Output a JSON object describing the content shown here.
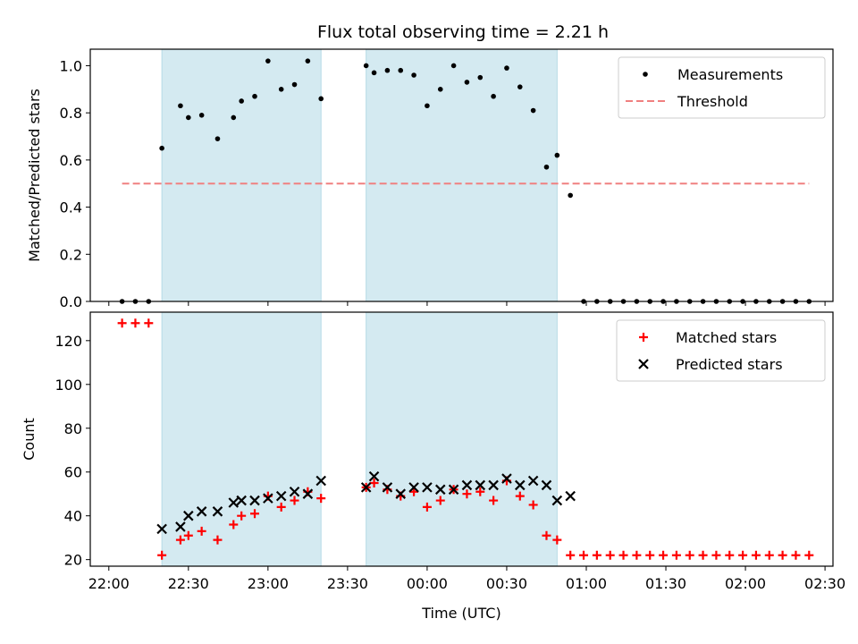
{
  "figure": {
    "title": "Flux total observing time = 2.21 h"
  },
  "chart_data": [
    {
      "type": "scatter",
      "ylabel": "Matched/Predicted stars",
      "xlabel": "",
      "ylim": [
        0,
        1.07
      ],
      "yticks": [
        0.0,
        0.2,
        0.4,
        0.6,
        0.8,
        1.0
      ],
      "ytick_labels": [
        "0.0",
        "0.2",
        "0.4",
        "0.6",
        "0.8",
        "1.0"
      ],
      "x_axis_time_hours": true,
      "xlim": [
        "21:53",
        "02:33"
      ],
      "legend": {
        "position": "top-right",
        "entries": [
          "Measurements",
          "Threshold"
        ]
      },
      "shaded_regions": [
        {
          "start": "22:20",
          "end": "23:20",
          "color": "#d4eaf1"
        },
        {
          "start": "23:37",
          "end": "00:49",
          "color": "#d4eaf1"
        }
      ],
      "series": [
        {
          "name": "Measurements",
          "marker": "dot",
          "color": "#000000",
          "points": [
            [
              "22:05",
              0.0
            ],
            [
              "22:10",
              0.0
            ],
            [
              "22:15",
              0.0
            ],
            [
              "22:20",
              0.65
            ],
            [
              "22:27",
              0.83
            ],
            [
              "22:30",
              0.78
            ],
            [
              "22:35",
              0.79
            ],
            [
              "22:41",
              0.69
            ],
            [
              "22:47",
              0.78
            ],
            [
              "22:50",
              0.85
            ],
            [
              "22:55",
              0.87
            ],
            [
              "23:00",
              1.02
            ],
            [
              "23:05",
              0.9
            ],
            [
              "23:10",
              0.92
            ],
            [
              "23:15",
              1.02
            ],
            [
              "23:20",
              0.86
            ],
            [
              "23:37",
              1.0
            ],
            [
              "23:40",
              0.97
            ],
            [
              "23:45",
              0.98
            ],
            [
              "23:50",
              0.98
            ],
            [
              "23:55",
              0.96
            ],
            [
              "00:00",
              0.83
            ],
            [
              "00:05",
              0.9
            ],
            [
              "00:10",
              1.0
            ],
            [
              "00:15",
              0.93
            ],
            [
              "00:20",
              0.95
            ],
            [
              "00:25",
              0.87
            ],
            [
              "00:30",
              0.99
            ],
            [
              "00:35",
              0.91
            ],
            [
              "00:40",
              0.81
            ],
            [
              "00:45",
              0.57
            ],
            [
              "00:49",
              0.62
            ],
            [
              "00:54",
              0.45
            ],
            [
              "00:59",
              0.0
            ],
            [
              "01:04",
              0.0
            ],
            [
              "01:09",
              0.0
            ],
            [
              "01:14",
              0.0
            ],
            [
              "01:19",
              0.0
            ],
            [
              "01:24",
              0.0
            ],
            [
              "01:29",
              0.0
            ],
            [
              "01:34",
              0.0
            ],
            [
              "01:39",
              0.0
            ],
            [
              "01:44",
              0.0
            ],
            [
              "01:49",
              0.0
            ],
            [
              "01:54",
              0.0
            ],
            [
              "01:59",
              0.0
            ],
            [
              "02:04",
              0.0
            ],
            [
              "02:09",
              0.0
            ],
            [
              "02:14",
              0.0
            ],
            [
              "02:19",
              0.0
            ],
            [
              "02:24",
              0.0
            ]
          ]
        },
        {
          "name": "Threshold",
          "marker": "dashed-line",
          "color": "#f08080",
          "points": [
            [
              "22:05",
              0.5
            ],
            [
              "02:24",
              0.5
            ]
          ]
        }
      ]
    },
    {
      "type": "scatter",
      "ylabel": "Count",
      "xlabel": "Time (UTC)",
      "ylim": [
        17,
        133
      ],
      "yticks": [
        20,
        40,
        60,
        80,
        100,
        120
      ],
      "ytick_labels": [
        "20",
        "40",
        "60",
        "80",
        "100",
        "120"
      ],
      "xticks": [
        "22:00",
        "22:30",
        "23:00",
        "23:30",
        "00:00",
        "00:30",
        "01:00",
        "01:30",
        "02:00",
        "02:30"
      ],
      "xlim": [
        "21:53",
        "02:33"
      ],
      "legend": {
        "position": "top-right",
        "entries": [
          "Matched stars",
          "Predicted stars"
        ]
      },
      "shaded_regions": [
        {
          "start": "22:20",
          "end": "23:20",
          "color": "#d4eaf1"
        },
        {
          "start": "23:37",
          "end": "00:49",
          "color": "#d4eaf1"
        }
      ],
      "series": [
        {
          "name": "Matched stars",
          "marker": "plus",
          "color": "#ff0000",
          "points": [
            [
              "22:05",
              128
            ],
            [
              "22:10",
              128
            ],
            [
              "22:15",
              128
            ],
            [
              "22:20",
              22
            ],
            [
              "22:27",
              29
            ],
            [
              "22:30",
              31
            ],
            [
              "22:35",
              33
            ],
            [
              "22:41",
              29
            ],
            [
              "22:47",
              36
            ],
            [
              "22:50",
              40
            ],
            [
              "22:55",
              41
            ],
            [
              "23:00",
              49
            ],
            [
              "23:05",
              44
            ],
            [
              "23:10",
              47
            ],
            [
              "23:15",
              51
            ],
            [
              "23:20",
              48
            ],
            [
              "23:37",
              53
            ],
            [
              "23:40",
              55
            ],
            [
              "23:45",
              52
            ],
            [
              "23:50",
              49
            ],
            [
              "23:55",
              51
            ],
            [
              "00:00",
              44
            ],
            [
              "00:05",
              47
            ],
            [
              "00:10",
              52
            ],
            [
              "00:15",
              50
            ],
            [
              "00:20",
              51
            ],
            [
              "00:25",
              47
            ],
            [
              "00:30",
              56
            ],
            [
              "00:35",
              49
            ],
            [
              "00:40",
              45
            ],
            [
              "00:45",
              31
            ],
            [
              "00:49",
              29
            ],
            [
              "00:54",
              22
            ],
            [
              "00:59",
              22
            ],
            [
              "01:04",
              22
            ],
            [
              "01:09",
              22
            ],
            [
              "01:14",
              22
            ],
            [
              "01:19",
              22
            ],
            [
              "01:24",
              22
            ],
            [
              "01:29",
              22
            ],
            [
              "01:34",
              22
            ],
            [
              "01:39",
              22
            ],
            [
              "01:44",
              22
            ],
            [
              "01:49",
              22
            ],
            [
              "01:54",
              22
            ],
            [
              "01:59",
              22
            ],
            [
              "02:04",
              22
            ],
            [
              "02:09",
              22
            ],
            [
              "02:14",
              22
            ],
            [
              "02:19",
              22
            ],
            [
              "02:24",
              22
            ]
          ]
        },
        {
          "name": "Predicted stars",
          "marker": "x",
          "color": "#000000",
          "points": [
            [
              "22:20",
              34
            ],
            [
              "22:27",
              35
            ],
            [
              "22:30",
              40
            ],
            [
              "22:35",
              42
            ],
            [
              "22:41",
              42
            ],
            [
              "22:47",
              46
            ],
            [
              "22:50",
              47
            ],
            [
              "22:55",
              47
            ],
            [
              "23:00",
              48
            ],
            [
              "23:05",
              49
            ],
            [
              "23:10",
              51
            ],
            [
              "23:15",
              50
            ],
            [
              "23:20",
              56
            ],
            [
              "23:37",
              53
            ],
            [
              "23:40",
              58
            ],
            [
              "23:45",
              53
            ],
            [
              "23:50",
              50
            ],
            [
              "23:55",
              53
            ],
            [
              "00:00",
              53
            ],
            [
              "00:05",
              52
            ],
            [
              "00:10",
              52
            ],
            [
              "00:15",
              54
            ],
            [
              "00:20",
              54
            ],
            [
              "00:25",
              54
            ],
            [
              "00:30",
              57
            ],
            [
              "00:35",
              54
            ],
            [
              "00:40",
              56
            ],
            [
              "00:45",
              54
            ],
            [
              "00:49",
              47
            ],
            [
              "00:54",
              49
            ]
          ]
        }
      ]
    }
  ]
}
